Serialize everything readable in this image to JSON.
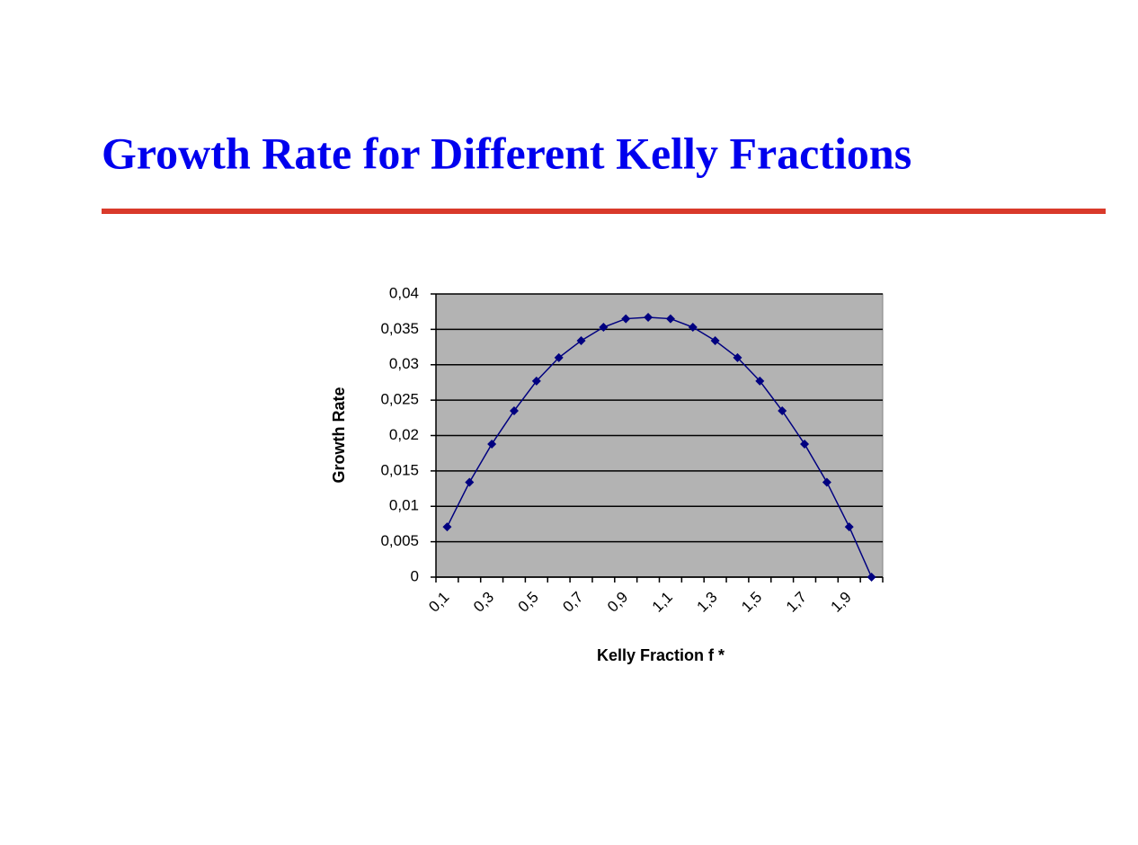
{
  "chart_data": {
    "type": "line",
    "title": "Growth Rate for Different Kelly Fractions",
    "x_label": "Kelly Fraction f *",
    "y_label": "Growth Rate",
    "categories": [
      "0,1",
      null,
      "0,3",
      null,
      "0,5",
      null,
      "0,7",
      null,
      "0,9",
      null,
      "1,1",
      null,
      "1,3",
      null,
      "1,5",
      null,
      "1,7",
      null,
      "1,9",
      null
    ],
    "series": [
      {
        "name": "Growth Rate",
        "color": "#000080",
        "values": [
          0.0071,
          0.0134,
          0.0188,
          0.0235,
          0.0277,
          0.031,
          0.0334,
          0.0353,
          0.0365,
          0.0367,
          0.0365,
          0.0353,
          0.0334,
          0.031,
          0.0277,
          0.0235,
          0.0188,
          0.0134,
          0.0071,
          0
        ]
      }
    ],
    "ylim": [
      0,
      0.04
    ],
    "yticks": [
      0,
      {
        "value": 0.005,
        "label": "0,005"
      },
      {
        "value": 0.01,
        "label": "0,01"
      },
      {
        "value": 0.015,
        "label": "0,015"
      },
      {
        "value": 0.02,
        "label": "0,02"
      },
      {
        "value": 0.025,
        "label": "0,025"
      },
      {
        "value": 0.03,
        "label": "0,03"
      },
      {
        "value": 0.035,
        "label": "0,035"
      },
      {
        "value": 0.04,
        "label": "0,04"
      }
    ],
    "grid": true,
    "plot_background": "#b3b3b3"
  }
}
